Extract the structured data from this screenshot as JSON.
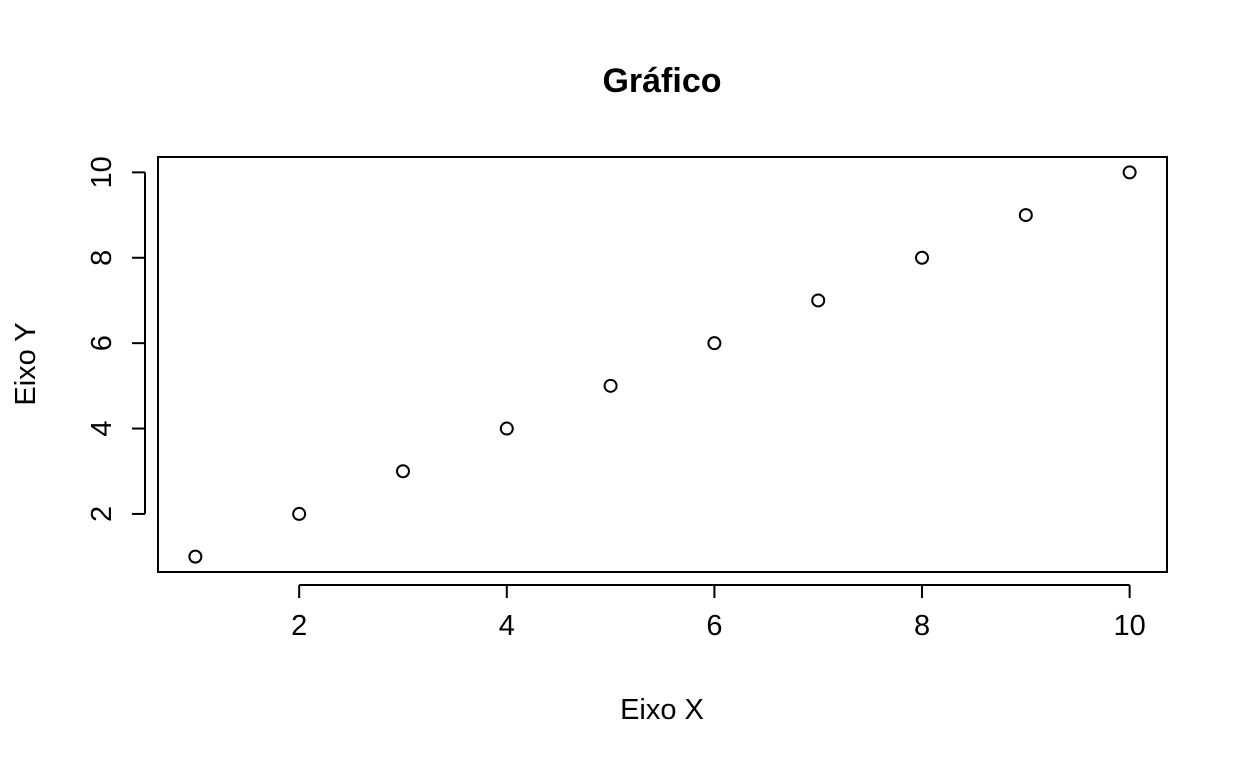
{
  "chart_data": {
    "type": "scatter",
    "title": "Gráfico",
    "xlabel": "Eixo X",
    "ylabel": "Eixo Y",
    "x": [
      1,
      2,
      3,
      4,
      5,
      6,
      7,
      8,
      9,
      10
    ],
    "y": [
      1,
      2,
      3,
      4,
      5,
      6,
      7,
      8,
      9,
      10
    ],
    "xlim": [
      0.64,
      10.36
    ],
    "ylim": [
      0.64,
      10.36
    ],
    "x_ticks": [
      2,
      4,
      6,
      8,
      10
    ],
    "y_ticks": [
      2,
      4,
      6,
      8,
      10
    ],
    "x_tick_labels": [
      "2",
      "4",
      "6",
      "8",
      "10"
    ],
    "y_tick_labels": [
      "2",
      "4",
      "6",
      "8",
      "10"
    ],
    "marker": "open-circle",
    "grid": false,
    "legend": "none",
    "colors": {
      "marker": "#000000",
      "axis": "#000000",
      "background": "#ffffff"
    }
  }
}
